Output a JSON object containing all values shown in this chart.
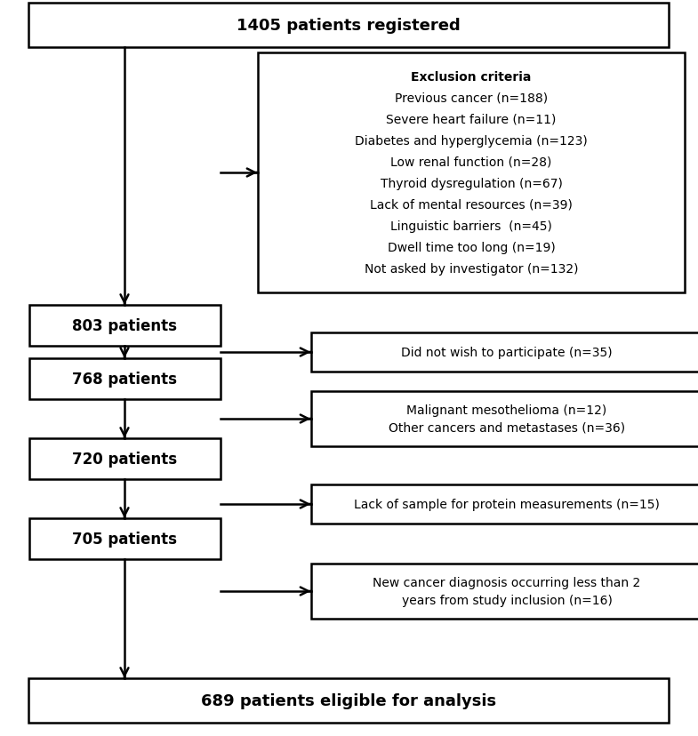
{
  "title": "1405 patients registered",
  "bottom_label": "689 patients eligible for analysis",
  "exclusion_title": "Exclusion criteria",
  "exclusion_lines": [
    "Previous cancer (n=188)",
    "Severe heart failure (n=11)",
    "Diabetes and hyperglycemia (n=123)",
    "Low renal function (n=28)",
    "Thyroid dysregulation (n=67)",
    "Lack of mental resources (n=39)",
    "Linguistic barriers  (n=45)",
    "Dwell time too long (n=19)",
    "Not asked by investigator (n=132)"
  ],
  "left_boxes": [
    "803 patients",
    "768 patients",
    "720 patients",
    "705 patients"
  ],
  "right_boxes": [
    {
      "lines": [
        "Did not wish to participate (n=35)"
      ],
      "n_lines": 1
    },
    {
      "lines": [
        "Malignant mesothelioma (n=12)",
        "Other cancers and metastases (n=36)"
      ],
      "n_lines": 2
    },
    {
      "lines": [
        "Lack of sample for protein measurements (n=15)"
      ],
      "n_lines": 1
    },
    {
      "lines": [
        "New cancer diagnosis occurring less than 2",
        "years from study inclusion (n=16)"
      ],
      "n_lines": 2
    }
  ],
  "bg_color": "#ffffff",
  "box_edge_color": "#000000",
  "text_color": "#000000",
  "fig_width": 7.85,
  "fig_height": 8.29,
  "dpi": 100
}
